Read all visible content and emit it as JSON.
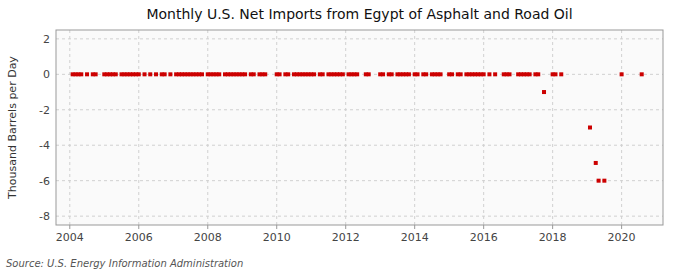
{
  "chart_data": {
    "type": "scatter",
    "title": "Monthly U.S. Net Imports from Egypt of Asphalt and Road Oil",
    "ylabel": "Thousand Barrels per Day",
    "source": "Source: U.S. Energy Information Administration",
    "x": [
      2004.083,
      2004.167,
      2004.25,
      2004.333,
      2004.5,
      2004.667,
      2004.75,
      2005.0,
      2005.083,
      2005.167,
      2005.25,
      2005.333,
      2005.5,
      2005.583,
      2005.667,
      2005.75,
      2005.833,
      2005.917,
      2006.0,
      2006.167,
      2006.333,
      2006.5,
      2006.667,
      2006.75,
      2006.917,
      2007.083,
      2007.167,
      2007.25,
      2007.333,
      2007.417,
      2007.5,
      2007.583,
      2007.667,
      2007.75,
      2007.833,
      2008.0,
      2008.083,
      2008.167,
      2008.25,
      2008.333,
      2008.5,
      2008.583,
      2008.667,
      2008.75,
      2008.833,
      2008.917,
      2009.0,
      2009.083,
      2009.25,
      2009.333,
      2009.5,
      2009.583,
      2009.667,
      2010.0,
      2010.083,
      2010.25,
      2010.333,
      2010.5,
      2010.583,
      2010.667,
      2010.75,
      2010.833,
      2010.917,
      2011.0,
      2011.083,
      2011.25,
      2011.333,
      2011.5,
      2011.583,
      2011.667,
      2011.75,
      2011.833,
      2011.917,
      2012.083,
      2012.167,
      2012.25,
      2012.333,
      2012.583,
      2012.667,
      2013.0,
      2013.083,
      2013.25,
      2013.333,
      2013.5,
      2013.583,
      2013.667,
      2013.75,
      2013.833,
      2014.0,
      2014.083,
      2014.25,
      2014.333,
      2014.5,
      2014.583,
      2014.667,
      2014.75,
      2015.0,
      2015.083,
      2015.25,
      2015.333,
      2015.5,
      2015.583,
      2015.667,
      2015.75,
      2015.833,
      2015.917,
      2016.0,
      2016.167,
      2016.333,
      2016.583,
      2016.667,
      2016.75,
      2017.0,
      2017.083,
      2017.167,
      2017.25,
      2017.333,
      2017.5,
      2017.583,
      2017.75,
      2018.0,
      2018.083,
      2018.25,
      2019.083,
      2019.25,
      2019.333,
      2019.5,
      2020.0,
      2020.583
    ],
    "values": [
      0,
      0,
      0,
      0,
      0,
      0,
      0,
      0,
      0,
      0,
      0,
      0,
      0,
      0,
      0,
      0,
      0,
      0,
      0,
      0,
      0,
      0,
      0,
      0,
      0,
      0,
      0,
      0,
      0,
      0,
      0,
      0,
      0,
      0,
      0,
      0,
      0,
      0,
      0,
      0,
      0,
      0,
      0,
      0,
      0,
      0,
      0,
      0,
      0,
      0,
      0,
      0,
      0,
      0,
      0,
      0,
      0,
      0,
      0,
      0,
      0,
      0,
      0,
      0,
      0,
      0,
      0,
      0,
      0,
      0,
      0,
      0,
      0,
      0,
      0,
      0,
      0,
      0,
      0,
      0,
      0,
      0,
      0,
      0,
      0,
      0,
      0,
      0,
      0,
      0,
      0,
      0,
      0,
      0,
      0,
      0,
      0,
      0,
      0,
      0,
      0,
      0,
      0,
      0,
      0,
      0,
      0,
      0,
      0,
      0,
      0,
      0,
      0,
      0,
      0,
      0,
      0,
      0,
      0,
      -1.0,
      0,
      0,
      0,
      -3.0,
      -5.0,
      -6.0,
      -6.0,
      0,
      0
    ],
    "color": "#cc0000",
    "marker": "square",
    "xlim": [
      2003.6,
      2021.2
    ],
    "ylim": [
      -8.5,
      2.5
    ],
    "xticks": [
      2004,
      2006,
      2008,
      2010,
      2012,
      2014,
      2016,
      2018,
      2020
    ],
    "yticks": [
      -8,
      -6,
      -4,
      -2,
      0,
      2
    ],
    "grid": true
  }
}
